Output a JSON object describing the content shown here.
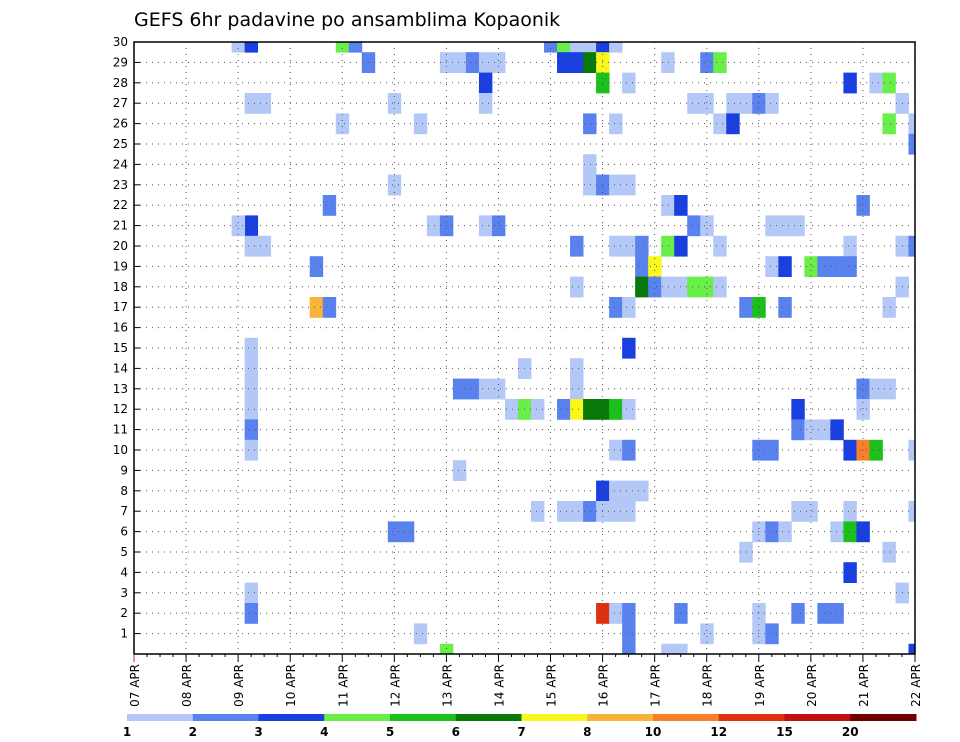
{
  "chart_data": {
    "type": "heatmap",
    "title": "GEFS 6hr padavine po ansamblima Kopaonik",
    "xlabel": "",
    "ylabel": "",
    "x_tick_labels": [
      "07 APR",
      "08 APR",
      "09 APR",
      "10 APR",
      "11 APR",
      "12 APR",
      "13 APR",
      "14 APR",
      "15 APR",
      "16 APR",
      "17 APR",
      "18 APR",
      "19 APR",
      "20 APR",
      "21 APR",
      "22 APR"
    ],
    "x_range": [
      0,
      60
    ],
    "y_tick_labels": [
      "1",
      "2",
      "3",
      "4",
      "5",
      "6",
      "7",
      "8",
      "9",
      "10",
      "11",
      "12",
      "13",
      "14",
      "15",
      "16",
      "17",
      "18",
      "19",
      "20",
      "21",
      "22",
      "23",
      "24",
      "25",
      "26",
      "27",
      "28",
      "29",
      "30"
    ],
    "y_range": [
      0,
      30
    ],
    "grid": true,
    "legend": {
      "placement": "bottom",
      "boundaries": [
        "1",
        "2",
        "3",
        "4",
        "5",
        "6",
        "7",
        "8",
        "10",
        "12",
        "15",
        "20"
      ],
      "colors": [
        "#b4c8f8",
        "#5a82ee",
        "#1a3fe0",
        "#6aee4a",
        "#1cc01c",
        "#087808",
        "#f8f81c",
        "#f8b43a",
        "#f8802a",
        "#e03010",
        "#c01010",
        "#700000"
      ]
    },
    "value_note": "each cell value = colour class index 1-12 (class k spans boundaries[k-1] to boundaries[k])",
    "cells": [
      [
        8,
        30,
        1
      ],
      [
        9,
        30,
        3
      ],
      [
        16,
        30,
        4
      ],
      [
        17,
        30,
        2
      ],
      [
        32,
        30,
        2
      ],
      [
        33,
        30,
        4
      ],
      [
        34,
        30,
        1
      ],
      [
        35,
        30,
        1
      ],
      [
        36,
        30,
        3
      ],
      [
        37,
        30,
        1
      ],
      [
        18,
        29,
        2
      ],
      [
        24,
        29,
        1
      ],
      [
        25,
        29,
        1
      ],
      [
        26,
        29,
        2
      ],
      [
        27,
        29,
        1
      ],
      [
        28,
        29,
        1
      ],
      [
        33,
        29,
        3
      ],
      [
        34,
        29,
        3
      ],
      [
        35,
        29,
        6
      ],
      [
        36,
        29,
        7
      ],
      [
        41,
        29,
        1
      ],
      [
        44,
        29,
        2
      ],
      [
        45,
        29,
        4
      ],
      [
        27,
        28,
        3
      ],
      [
        36,
        28,
        5
      ],
      [
        38,
        28,
        1
      ],
      [
        55,
        28,
        3
      ],
      [
        57,
        28,
        1
      ],
      [
        58,
        28,
        4
      ],
      [
        10,
        27,
        1
      ],
      [
        9,
        27,
        1
      ],
      [
        20,
        27,
        1
      ],
      [
        27,
        27,
        1
      ],
      [
        43,
        27,
        1
      ],
      [
        44,
        27,
        1
      ],
      [
        46,
        27,
        1
      ],
      [
        47,
        27,
        1
      ],
      [
        48,
        27,
        2
      ],
      [
        49,
        27,
        1
      ],
      [
        59,
        27,
        1
      ],
      [
        16,
        26,
        1
      ],
      [
        22,
        26,
        1
      ],
      [
        35,
        26,
        2
      ],
      [
        37,
        26,
        1
      ],
      [
        45,
        26,
        1
      ],
      [
        46,
        26,
        3
      ],
      [
        58,
        26,
        4
      ],
      [
        60,
        26,
        1
      ],
      [
        60,
        25,
        2
      ],
      [
        35,
        24,
        1
      ],
      [
        20,
        23,
        1
      ],
      [
        35,
        23,
        1
      ],
      [
        36,
        23,
        2
      ],
      [
        37,
        23,
        1
      ],
      [
        38,
        23,
        1
      ],
      [
        15,
        22,
        2
      ],
      [
        41,
        22,
        1
      ],
      [
        42,
        22,
        3
      ],
      [
        56,
        22,
        2
      ],
      [
        9,
        21,
        3
      ],
      [
        8,
        21,
        1
      ],
      [
        23,
        21,
        1
      ],
      [
        24,
        21,
        2
      ],
      [
        27,
        21,
        1
      ],
      [
        28,
        21,
        2
      ],
      [
        43,
        21,
        2
      ],
      [
        44,
        21,
        1
      ],
      [
        49,
        21,
        1
      ],
      [
        50,
        21,
        1
      ],
      [
        51,
        21,
        1
      ],
      [
        10,
        20,
        1
      ],
      [
        9,
        20,
        1
      ],
      [
        34,
        20,
        2
      ],
      [
        37,
        20,
        1
      ],
      [
        38,
        20,
        1
      ],
      [
        39,
        20,
        2
      ],
      [
        41,
        20,
        4
      ],
      [
        42,
        20,
        3
      ],
      [
        45,
        20,
        1
      ],
      [
        55,
        20,
        1
      ],
      [
        59,
        20,
        1
      ],
      [
        60,
        20,
        2
      ],
      [
        14,
        19,
        2
      ],
      [
        39,
        19,
        2
      ],
      [
        40,
        19,
        7
      ],
      [
        49,
        19,
        1
      ],
      [
        50,
        19,
        3
      ],
      [
        52,
        19,
        4
      ],
      [
        53,
        19,
        2
      ],
      [
        54,
        19,
        2
      ],
      [
        55,
        19,
        2
      ],
      [
        34,
        18,
        1
      ],
      [
        39,
        18,
        6
      ],
      [
        40,
        18,
        2
      ],
      [
        41,
        18,
        1
      ],
      [
        42,
        18,
        1
      ],
      [
        43,
        18,
        4
      ],
      [
        44,
        18,
        4
      ],
      [
        45,
        18,
        1
      ],
      [
        59,
        18,
        1
      ],
      [
        14,
        17,
        8
      ],
      [
        15,
        17,
        2
      ],
      [
        37,
        17,
        2
      ],
      [
        38,
        17,
        1
      ],
      [
        47,
        17,
        2
      ],
      [
        48,
        17,
        5
      ],
      [
        50,
        17,
        2
      ],
      [
        58,
        17,
        1
      ],
      [
        38,
        15,
        3
      ],
      [
        30,
        14,
        1
      ],
      [
        34,
        14,
        1
      ],
      [
        9,
        15,
        1
      ],
      [
        9,
        14,
        1
      ],
      [
        9,
        13,
        1
      ],
      [
        9,
        12,
        1
      ],
      [
        9,
        11,
        2
      ],
      [
        9,
        10,
        1
      ],
      [
        25,
        13,
        2
      ],
      [
        26,
        13,
        2
      ],
      [
        27,
        13,
        1
      ],
      [
        28,
        13,
        1
      ],
      [
        34,
        13,
        1
      ],
      [
        56,
        13,
        2
      ],
      [
        57,
        13,
        1
      ],
      [
        58,
        13,
        1
      ],
      [
        29,
        12,
        1
      ],
      [
        30,
        12,
        4
      ],
      [
        31,
        12,
        1
      ],
      [
        33,
        12,
        2
      ],
      [
        34,
        12,
        7
      ],
      [
        35,
        12,
        6
      ],
      [
        36,
        12,
        6
      ],
      [
        37,
        12,
        5
      ],
      [
        38,
        12,
        1
      ],
      [
        51,
        12,
        3
      ],
      [
        56,
        12,
        1
      ],
      [
        51,
        11,
        2
      ],
      [
        52,
        11,
        1
      ],
      [
        53,
        11,
        1
      ],
      [
        54,
        11,
        3
      ],
      [
        37,
        10,
        1
      ],
      [
        38,
        10,
        2
      ],
      [
        48,
        10,
        2
      ],
      [
        49,
        10,
        2
      ],
      [
        55,
        10,
        3
      ],
      [
        56,
        10,
        9
      ],
      [
        57,
        10,
        5
      ],
      [
        60,
        10,
        1
      ],
      [
        25,
        9,
        1
      ],
      [
        36,
        8,
        3
      ],
      [
        37,
        8,
        1
      ],
      [
        38,
        8,
        1
      ],
      [
        39,
        8,
        1
      ],
      [
        31,
        7,
        1
      ],
      [
        33,
        7,
        1
      ],
      [
        34,
        7,
        1
      ],
      [
        35,
        7,
        2
      ],
      [
        36,
        7,
        1
      ],
      [
        37,
        7,
        1
      ],
      [
        38,
        7,
        1
      ],
      [
        51,
        7,
        1
      ],
      [
        52,
        7,
        1
      ],
      [
        55,
        7,
        1
      ],
      [
        60,
        7,
        1
      ],
      [
        20,
        6,
        2
      ],
      [
        21,
        6,
        2
      ],
      [
        48,
        6,
        1
      ],
      [
        49,
        6,
        2
      ],
      [
        50,
        6,
        1
      ],
      [
        54,
        6,
        1
      ],
      [
        55,
        6,
        5
      ],
      [
        56,
        6,
        3
      ],
      [
        47,
        5,
        1
      ],
      [
        58,
        5,
        1
      ],
      [
        55,
        4,
        3
      ],
      [
        9,
        3,
        1
      ],
      [
        59,
        3,
        1
      ],
      [
        9,
        2,
        2
      ],
      [
        36,
        2,
        10
      ],
      [
        37,
        2,
        1
      ],
      [
        38,
        2,
        2
      ],
      [
        42,
        2,
        2
      ],
      [
        48,
        2,
        1
      ],
      [
        51,
        2,
        2
      ],
      [
        53,
        2,
        2
      ],
      [
        54,
        2,
        2
      ],
      [
        22,
        1,
        1
      ],
      [
        38,
        1,
        2
      ],
      [
        44,
        1,
        1
      ],
      [
        48,
        1,
        1
      ],
      [
        49,
        1,
        2
      ],
      [
        38,
        0,
        2
      ],
      [
        24,
        0,
        4
      ],
      [
        41,
        0,
        1
      ],
      [
        42,
        0,
        1
      ],
      [
        60,
        0,
        3
      ]
    ]
  }
}
